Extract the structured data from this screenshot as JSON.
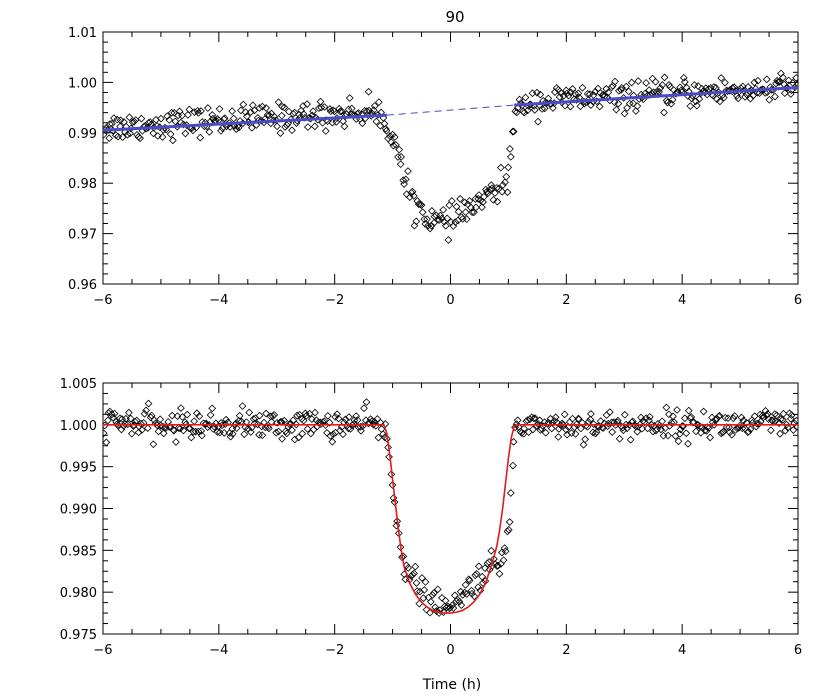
{
  "chart_data": [
    {
      "type": "scatter",
      "title": "90",
      "xlabel": "",
      "ylabel": "",
      "xlim": [
        -6,
        6
      ],
      "ylim": [
        0.96,
        1.01
      ],
      "xticks": [
        -6,
        -4,
        -2,
        0,
        2,
        4,
        6
      ],
      "xtick_labels": [
        "−6",
        "−4",
        "−2",
        "0",
        "2",
        "4",
        "6"
      ],
      "yticks": [
        0.96,
        0.97,
        0.98,
        0.99,
        1.0,
        1.01
      ],
      "ytick_labels": [
        "0.96",
        "0.97",
        "0.98",
        "0.99",
        "1.00",
        "1.01"
      ],
      "grid": false,
      "colors": {
        "points": "#000000",
        "trend": "#4b4bc8"
      },
      "series": [
        {
          "kind": "points",
          "x": [
            -6.0,
            -5.5,
            -5.0,
            -4.5,
            -4.0,
            -3.5,
            -3.0,
            -2.5,
            -2.0,
            -1.6,
            -1.3,
            -1.1,
            -1.0,
            -0.9,
            -0.8,
            -0.7,
            -0.6,
            -0.5,
            -0.4,
            -0.3,
            -0.2,
            -0.1,
            0.0,
            0.1,
            0.2,
            0.3,
            0.4,
            0.5,
            0.6,
            0.7,
            0.8,
            0.9,
            1.0,
            1.1,
            1.3,
            1.6,
            2.0,
            2.5,
            3.0,
            3.5,
            4.0,
            4.5,
            5.0,
            5.5,
            6.0
          ],
          "y": [
            0.9911,
            0.9913,
            0.9917,
            0.9921,
            0.9924,
            0.9927,
            0.993,
            0.9933,
            0.9937,
            0.994,
            0.9942,
            0.9918,
            0.9895,
            0.986,
            0.98,
            0.978,
            0.976,
            0.9745,
            0.9735,
            0.9728,
            0.9722,
            0.972,
            0.9725,
            0.9732,
            0.974,
            0.9748,
            0.9755,
            0.9762,
            0.977,
            0.9777,
            0.9785,
            0.9795,
            0.982,
            0.9925,
            0.9962,
            0.9963,
            0.9966,
            0.9969,
            0.9972,
            0.9975,
            0.9978,
            0.9981,
            0.9984,
            0.9987,
            0.999
          ]
        },
        {
          "kind": "trend",
          "x": [
            -6,
            -1.1,
            1.1,
            6
          ],
          "y": [
            0.9905,
            0.9935,
            0.9955,
            0.999
          ]
        }
      ]
    },
    {
      "type": "scatter",
      "title": "",
      "xlabel": "Time (h)",
      "ylabel": "",
      "xlim": [
        -6,
        6
      ],
      "ylim": [
        0.975,
        1.005
      ],
      "xticks": [
        -6,
        -4,
        -2,
        0,
        2,
        4,
        6
      ],
      "xtick_labels": [
        "−6",
        "−4",
        "−2",
        "0",
        "2",
        "4",
        "6"
      ],
      "yticks": [
        0.975,
        0.98,
        0.985,
        0.99,
        0.995,
        1.0,
        1.005
      ],
      "ytick_labels": [
        "0.975",
        "0.980",
        "0.985",
        "0.990",
        "0.995",
        "1.000",
        "1.005"
      ],
      "grid": false,
      "colors": {
        "points": "#000000",
        "model": "#e31a1c"
      },
      "series": [
        {
          "kind": "points",
          "x": [
            -6.0,
            -5.5,
            -5.0,
            -4.5,
            -4.0,
            -3.5,
            -3.0,
            -2.5,
            -2.0,
            -1.5,
            -1.2,
            -1.1,
            -1.0,
            -0.9,
            -0.8,
            -0.7,
            -0.6,
            -0.5,
            -0.4,
            -0.3,
            -0.2,
            -0.1,
            0.0,
            0.1,
            0.2,
            0.3,
            0.4,
            0.5,
            0.6,
            0.7,
            0.8,
            0.9,
            1.0,
            1.1,
            1.3,
            1.6,
            2.0,
            2.5,
            3.0,
            3.5,
            4.0,
            4.5,
            5.0,
            5.5,
            6.0
          ],
          "y": [
            1.0003,
            1.0002,
            0.9998,
            1.0001,
            0.9999,
            1.0002,
            0.9998,
            1.0001,
            1.0,
            1.0001,
            0.9999,
            0.9985,
            0.992,
            0.988,
            0.9835,
            0.982,
            0.981,
            0.98,
            0.9793,
            0.9788,
            0.9784,
            0.9781,
            0.9778,
            0.9785,
            0.9795,
            0.9805,
            0.9812,
            0.9818,
            0.9823,
            0.9828,
            0.9832,
            0.9838,
            0.9862,
            0.9995,
            1.0001,
            1.0002,
            0.9999,
            1.0001,
            0.9998,
            1.0002,
            0.9999,
            1.0001,
            0.9999,
            1.0002,
            0.9998
          ]
        },
        {
          "kind": "model",
          "x": [
            -6.0,
            -1.15,
            -1.1,
            -1.05,
            -1.0,
            -0.95,
            -0.9,
            -0.85,
            -0.8,
            -0.7,
            -0.6,
            -0.5,
            -0.4,
            -0.3,
            -0.2,
            -0.1,
            0.0,
            0.1,
            0.2,
            0.3,
            0.4,
            0.5,
            0.6,
            0.7,
            0.8,
            0.85,
            0.9,
            0.95,
            1.0,
            1.05,
            1.1,
            1.15,
            6.0
          ],
          "y": [
            1.0,
            1.0,
            0.999,
            0.9965,
            0.9935,
            0.9905,
            0.9875,
            0.985,
            0.983,
            0.981,
            0.9797,
            0.9788,
            0.9782,
            0.9778,
            0.9776,
            0.9775,
            0.9775,
            0.9776,
            0.9778,
            0.9782,
            0.9788,
            0.9797,
            0.981,
            0.983,
            0.9855,
            0.9875,
            0.99,
            0.993,
            0.996,
            0.9985,
            0.9998,
            1.0,
            1.0
          ]
        }
      ]
    }
  ]
}
